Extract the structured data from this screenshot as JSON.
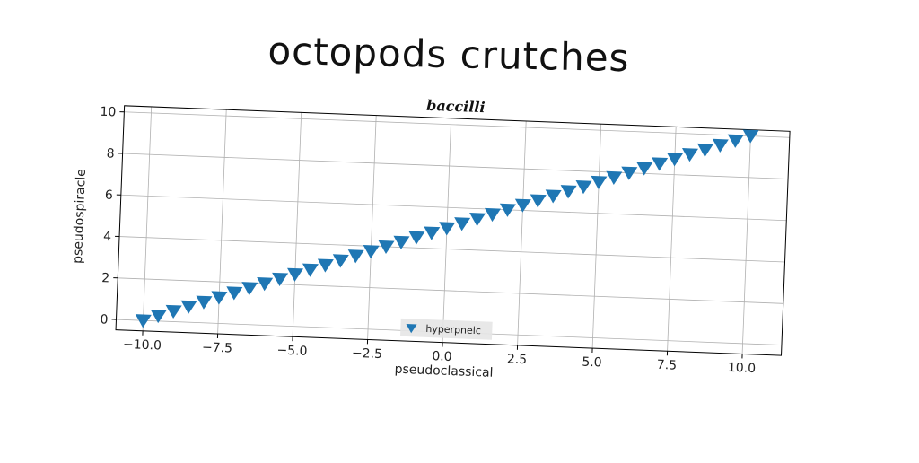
{
  "title": "octopods crutches",
  "chart_data": {
    "type": "scatter",
    "subtitle": "baccilli",
    "xlabel": "pseudoclassical",
    "ylabel": "pseudospiracle",
    "xlim": [
      -10.9,
      11.3
    ],
    "ylim": [
      -0.5,
      10.3
    ],
    "xticks": [
      -10.0,
      -7.5,
      -5.0,
      -2.5,
      0.0,
      2.5,
      5.0,
      7.5,
      10.0
    ],
    "xtick_labels": [
      "−10.0",
      "−7.5",
      "−5.0",
      "−2.5",
      "0.0",
      "2.5",
      "5.0",
      "7.5",
      "10.0"
    ],
    "yticks": [
      0,
      2,
      4,
      6,
      8,
      10
    ],
    "ytick_labels": [
      "0",
      "2",
      "4",
      "6",
      "8",
      "10"
    ],
    "grid": true,
    "legend_position": "lower-center",
    "marker": "triangle-down",
    "color": "#1f77b4",
    "series": [
      {
        "name": "hyperpneic",
        "x": [
          -10.0,
          -9.5,
          -9.0,
          -8.5,
          -8.0,
          -7.5,
          -7.0,
          -6.5,
          -6.0,
          -5.5,
          -5.0,
          -4.5,
          -4.0,
          -3.5,
          -3.0,
          -2.5,
          -2.0,
          -1.5,
          -1.0,
          -0.5,
          0.0,
          0.5,
          1.0,
          1.5,
          2.0,
          2.5,
          3.0,
          3.5,
          4.0,
          4.5,
          5.0,
          5.5,
          6.0,
          6.5,
          7.0,
          7.5,
          8.0,
          8.5,
          9.0,
          9.5,
          10.0
        ],
        "y": [
          0.0,
          0.25,
          0.5,
          0.75,
          1.0,
          1.25,
          1.5,
          1.75,
          2.0,
          2.25,
          2.5,
          2.75,
          3.0,
          3.25,
          3.5,
          3.75,
          4.0,
          4.25,
          4.5,
          4.75,
          5.0,
          5.25,
          5.5,
          5.75,
          6.0,
          6.25,
          6.5,
          6.75,
          7.0,
          7.25,
          7.5,
          7.75,
          8.0,
          8.25,
          8.5,
          8.75,
          9.0,
          9.25,
          9.5,
          9.75,
          10.0
        ]
      }
    ]
  }
}
